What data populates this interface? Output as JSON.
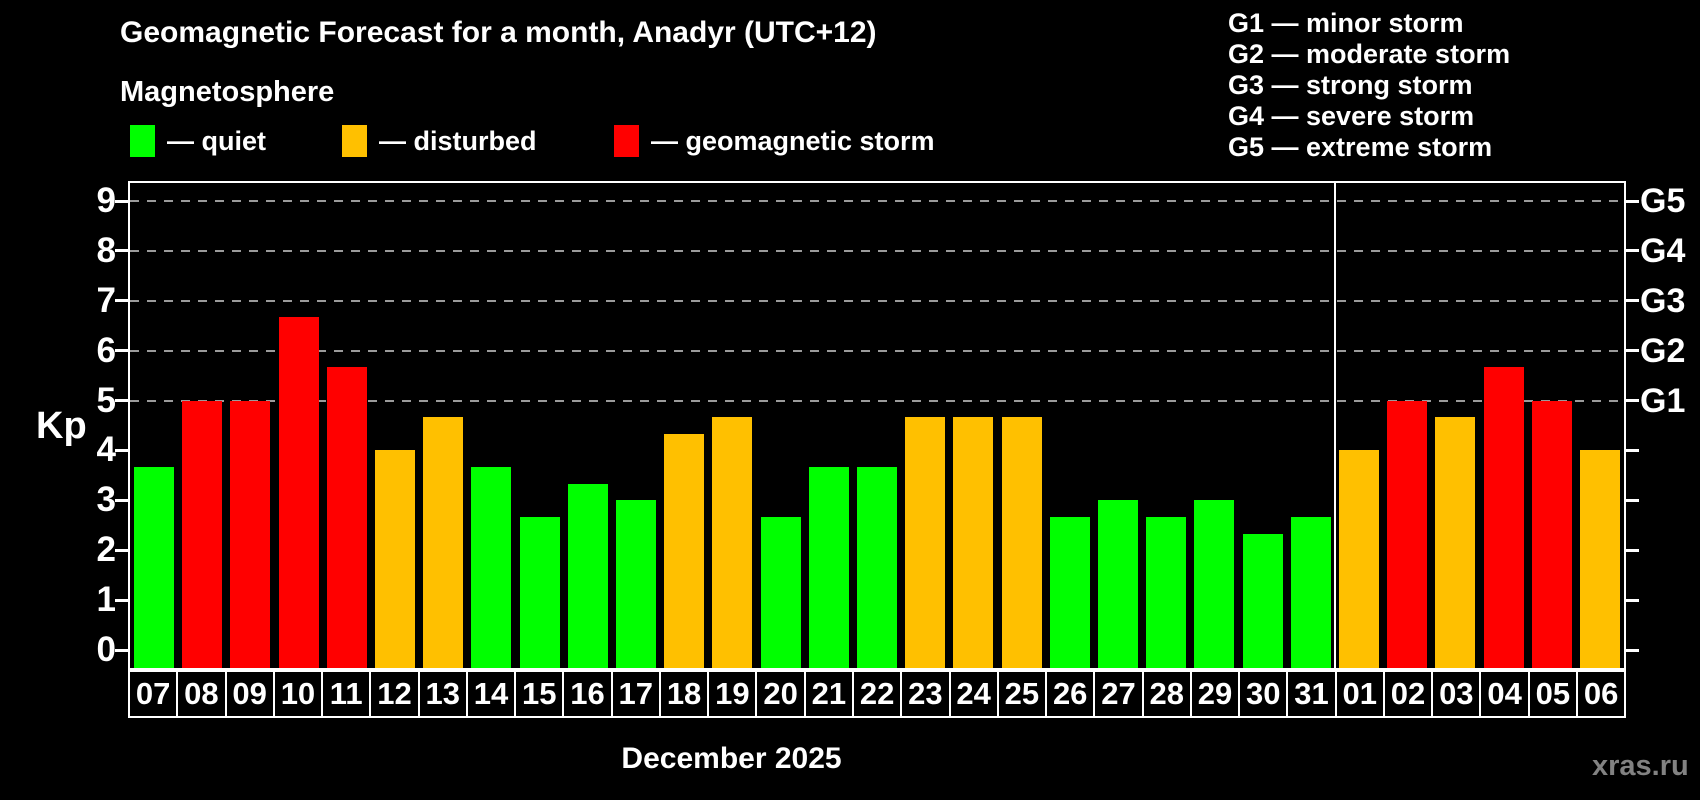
{
  "title": "Geomagnetic Forecast for a month, Anadyr (UTC+12)",
  "subtitle": "Magnetosphere",
  "watermark": "xras.ru",
  "colors": {
    "quiet": "#00ff00",
    "disturbed": "#ffc000",
    "storm": "#ff0000",
    "gridline": "#9b9b9b",
    "axis": "#ffffff",
    "background": "#000000",
    "watermark": "#828282"
  },
  "legend": {
    "items": [
      {
        "status": "quiet",
        "label": "— quiet",
        "color": "#00ff00"
      },
      {
        "status": "disturbed",
        "label": "— disturbed",
        "color": "#ffc000"
      },
      {
        "status": "storm",
        "label": "— geomagnetic storm",
        "color": "#ff0000"
      }
    ]
  },
  "storm_scale": {
    "lines": [
      "G1 — minor storm",
      "G2 — moderate storm",
      "G3 — strong storm",
      "G4 — severe storm",
      "G5 — extreme storm"
    ]
  },
  "chart_data": {
    "type": "bar",
    "title": "Geomagnetic Forecast for a month, Anadyr (UTC+12)",
    "subtitle": "Magnetosphere",
    "ylabel": "Kp",
    "xlabel": "December 2025",
    "ylim": [
      0,
      9
    ],
    "yticks": [
      0,
      1,
      2,
      3,
      4,
      5,
      6,
      7,
      8,
      9
    ],
    "gridlines_at": [
      5,
      6,
      7,
      8,
      9
    ],
    "grid": "dashed horizontal at G-storm levels only",
    "legend_position": "top-left",
    "right_axis": [
      {
        "value": 5,
        "label": "G1"
      },
      {
        "value": 6,
        "label": "G2"
      },
      {
        "value": 7,
        "label": "G3"
      },
      {
        "value": 8,
        "label": "G4"
      },
      {
        "value": 9,
        "label": "G5"
      }
    ],
    "categories": [
      "07",
      "08",
      "09",
      "10",
      "11",
      "12",
      "13",
      "14",
      "15",
      "16",
      "17",
      "18",
      "19",
      "20",
      "21",
      "22",
      "23",
      "24",
      "25",
      "26",
      "27",
      "28",
      "29",
      "30",
      "31",
      "01",
      "02",
      "03",
      "04",
      "05",
      "06"
    ],
    "values": [
      3.67,
      5,
      5,
      6.67,
      5.67,
      4,
      4.67,
      3.67,
      2.67,
      3.33,
      3,
      4.33,
      4.67,
      2.67,
      3.67,
      3.67,
      4.67,
      4.67,
      4.67,
      2.67,
      3,
      2.67,
      3,
      2.33,
      2.67,
      4,
      5,
      4.67,
      5.67,
      5,
      4
    ],
    "statuses": [
      "quiet",
      "storm",
      "storm",
      "storm",
      "storm",
      "disturbed",
      "disturbed",
      "quiet",
      "quiet",
      "quiet",
      "quiet",
      "disturbed",
      "disturbed",
      "quiet",
      "quiet",
      "quiet",
      "disturbed",
      "disturbed",
      "disturbed",
      "quiet",
      "quiet",
      "quiet",
      "quiet",
      "quiet",
      "quiet",
      "disturbed",
      "storm",
      "disturbed",
      "storm",
      "storm",
      "disturbed"
    ],
    "divider_after_category": "31"
  }
}
